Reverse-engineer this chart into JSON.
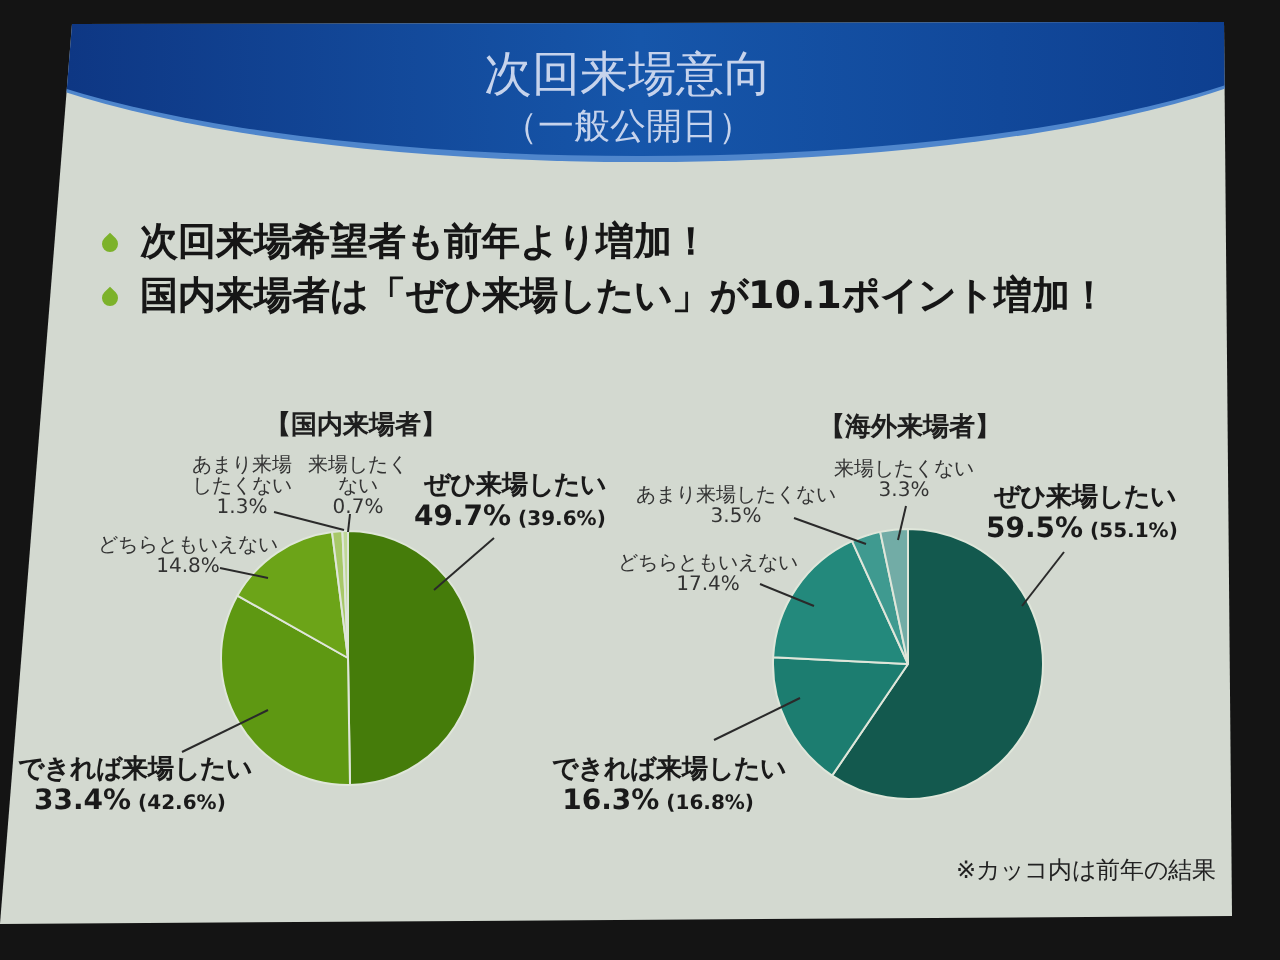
{
  "chart_data": [
    {
      "type": "other",
      "title": "次回来場意向",
      "subtitle": "（一般公開日）",
      "annotations": [
        "次回来場希望者も前年より増加！",
        "国内来場者は「ぜひ来場したい」が10.1ポイント増加！"
      ]
    },
    {
      "type": "pie",
      "title": "【国内来場者】",
      "categories": [
        "ぜひ来場したい",
        "できれば来場したい",
        "どちらともいえない",
        "あまり来場したくない",
        "来場したくない"
      ],
      "values": [
        49.7,
        33.4,
        14.8,
        1.3,
        0.7
      ],
      "colors": [
        "#457c0a",
        "#5e9812",
        "#6ca418",
        "#a8c868",
        "#c0d898"
      ],
      "value_labels": [
        "49.7% (39.6%)",
        "33.4% (42.6%)",
        "14.8%",
        "1.3%",
        "0.7%"
      ]
    },
    {
      "type": "pie",
      "title": "【海外来場者】",
      "categories": [
        "ぜひ来場したい",
        "できれば来場したい",
        "どちらともいえない",
        "あまり来場したくない",
        "来場したくない"
      ],
      "values": [
        59.5,
        16.3,
        17.4,
        3.5,
        3.3
      ],
      "colors": [
        "#13594e",
        "#1c7d70",
        "#23897c",
        "#3f9a90",
        "#72aca6"
      ],
      "value_labels": [
        "59.5% (55.1%)",
        "16.3% (16.8%)",
        "17.4%",
        "3.5%",
        "3.3%"
      ],
      "annotations": [
        "※カッコ内は前年の結果"
      ]
    }
  ]
}
